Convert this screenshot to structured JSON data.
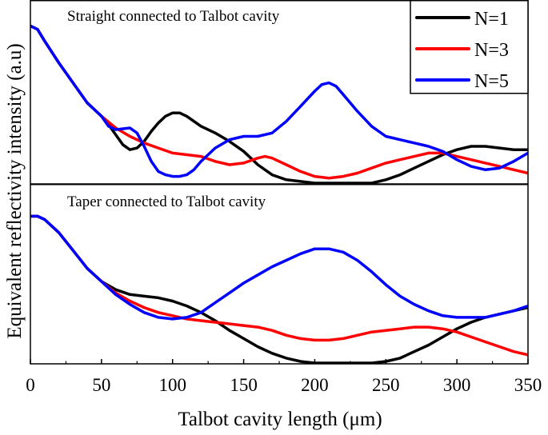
{
  "chart_data": {
    "type": "line",
    "xlabel": "Talbot cavity length (μm)",
    "ylabel": "Equivalent reflectivity intensity (a.u)",
    "xlim": [
      0,
      350
    ],
    "xticks": [
      0,
      50,
      100,
      150,
      200,
      250,
      300,
      350
    ],
    "grid": false,
    "legend": {
      "placement": "top-right",
      "entries": [
        {
          "name": "N=1",
          "color": "#000000"
        },
        {
          "name": "N=3",
          "color": "#ff0000"
        },
        {
          "name": "N=5",
          "color": "#0000ff"
        }
      ]
    },
    "panels": [
      {
        "title": "Straight connected to Talbot cavity",
        "ylim": [
          0,
          1
        ],
        "series": [
          {
            "name": "N=1",
            "color": "#000000",
            "points": [
              [
                0,
                0.94
              ],
              [
                5,
                0.92
              ],
              [
                10,
                0.85
              ],
              [
                20,
                0.72
              ],
              [
                30,
                0.6
              ],
              [
                40,
                0.48
              ],
              [
                50,
                0.4
              ],
              [
                55,
                0.35
              ],
              [
                60,
                0.29
              ],
              [
                65,
                0.23
              ],
              [
                70,
                0.2
              ],
              [
                75,
                0.21
              ],
              [
                80,
                0.25
              ],
              [
                85,
                0.31
              ],
              [
                90,
                0.36
              ],
              [
                95,
                0.4
              ],
              [
                100,
                0.42
              ],
              [
                105,
                0.42
              ],
              [
                110,
                0.4
              ],
              [
                115,
                0.37
              ],
              [
                120,
                0.34
              ],
              [
                130,
                0.3
              ],
              [
                140,
                0.25
              ],
              [
                150,
                0.19
              ],
              [
                155,
                0.15
              ],
              [
                160,
                0.11
              ],
              [
                170,
                0.05
              ],
              [
                180,
                0.02
              ],
              [
                190,
                0.01
              ],
              [
                200,
                0
              ],
              [
                220,
                0
              ],
              [
                240,
                0
              ],
              [
                250,
                0.02
              ],
              [
                260,
                0.05
              ],
              [
                270,
                0.09
              ],
              [
                280,
                0.13
              ],
              [
                290,
                0.17
              ],
              [
                300,
                0.2
              ],
              [
                310,
                0.22
              ],
              [
                320,
                0.22
              ],
              [
                330,
                0.21
              ],
              [
                340,
                0.2
              ],
              [
                350,
                0.2
              ]
            ]
          },
          {
            "name": "N=3",
            "color": "#ff0000",
            "points": [
              [
                0,
                0.94
              ],
              [
                5,
                0.92
              ],
              [
                10,
                0.85
              ],
              [
                20,
                0.72
              ],
              [
                30,
                0.6
              ],
              [
                40,
                0.48
              ],
              [
                50,
                0.4
              ],
              [
                60,
                0.33
              ],
              [
                70,
                0.28
              ],
              [
                80,
                0.24
              ],
              [
                90,
                0.21
              ],
              [
                100,
                0.18
              ],
              [
                110,
                0.17
              ],
              [
                120,
                0.16
              ],
              [
                130,
                0.13
              ],
              [
                140,
                0.11
              ],
              [
                150,
                0.12
              ],
              [
                160,
                0.15
              ],
              [
                165,
                0.16
              ],
              [
                170,
                0.15
              ],
              [
                180,
                0.11
              ],
              [
                190,
                0.07
              ],
              [
                200,
                0.04
              ],
              [
                210,
                0.03
              ],
              [
                220,
                0.04
              ],
              [
                230,
                0.06
              ],
              [
                240,
                0.09
              ],
              [
                250,
                0.12
              ],
              [
                260,
                0.14
              ],
              [
                270,
                0.16
              ],
              [
                280,
                0.18
              ],
              [
                290,
                0.18
              ],
              [
                300,
                0.16
              ],
              [
                310,
                0.14
              ],
              [
                320,
                0.12
              ],
              [
                330,
                0.1
              ],
              [
                340,
                0.08
              ],
              [
                350,
                0.06
              ]
            ]
          },
          {
            "name": "N=5",
            "color": "#0000ff",
            "points": [
              [
                0,
                0.94
              ],
              [
                5,
                0.92
              ],
              [
                10,
                0.85
              ],
              [
                20,
                0.72
              ],
              [
                30,
                0.6
              ],
              [
                40,
                0.48
              ],
              [
                50,
                0.4
              ],
              [
                55,
                0.34
              ],
              [
                60,
                0.32
              ],
              [
                70,
                0.33
              ],
              [
                75,
                0.3
              ],
              [
                80,
                0.22
              ],
              [
                85,
                0.13
              ],
              [
                90,
                0.07
              ],
              [
                95,
                0.05
              ],
              [
                100,
                0.04
              ],
              [
                105,
                0.04
              ],
              [
                110,
                0.05
              ],
              [
                115,
                0.08
              ],
              [
                120,
                0.13
              ],
              [
                130,
                0.21
              ],
              [
                140,
                0.26
              ],
              [
                150,
                0.28
              ],
              [
                160,
                0.28
              ],
              [
                170,
                0.3
              ],
              [
                180,
                0.37
              ],
              [
                190,
                0.46
              ],
              [
                200,
                0.55
              ],
              [
                205,
                0.59
              ],
              [
                210,
                0.6
              ],
              [
                215,
                0.58
              ],
              [
                220,
                0.53
              ],
              [
                230,
                0.43
              ],
              [
                240,
                0.34
              ],
              [
                250,
                0.28
              ],
              [
                260,
                0.26
              ],
              [
                270,
                0.24
              ],
              [
                280,
                0.22
              ],
              [
                290,
                0.19
              ],
              [
                300,
                0.14
              ],
              [
                310,
                0.1
              ],
              [
                320,
                0.08
              ],
              [
                330,
                0.09
              ],
              [
                340,
                0.13
              ],
              [
                350,
                0.18
              ]
            ]
          }
        ]
      },
      {
        "title": "Taper connected to Talbot cavity",
        "ylim": [
          0,
          1
        ],
        "series": [
          {
            "name": "N=1",
            "color": "#000000",
            "points": [
              [
                0,
                0.9
              ],
              [
                5,
                0.9
              ],
              [
                10,
                0.88
              ],
              [
                20,
                0.8
              ],
              [
                30,
                0.69
              ],
              [
                40,
                0.58
              ],
              [
                50,
                0.5
              ],
              [
                60,
                0.45
              ],
              [
                70,
                0.42
              ],
              [
                80,
                0.41
              ],
              [
                90,
                0.4
              ],
              [
                100,
                0.38
              ],
              [
                110,
                0.35
              ],
              [
                120,
                0.31
              ],
              [
                130,
                0.26
              ],
              [
                140,
                0.2
              ],
              [
                150,
                0.15
              ],
              [
                160,
                0.1
              ],
              [
                170,
                0.06
              ],
              [
                180,
                0.03
              ],
              [
                190,
                0.01
              ],
              [
                200,
                0
              ],
              [
                220,
                0
              ],
              [
                240,
                0
              ],
              [
                250,
                0.01
              ],
              [
                260,
                0.03
              ],
              [
                270,
                0.07
              ],
              [
                280,
                0.11
              ],
              [
                290,
                0.16
              ],
              [
                300,
                0.21
              ],
              [
                310,
                0.25
              ],
              [
                320,
                0.28
              ],
              [
                330,
                0.3
              ],
              [
                340,
                0.32
              ],
              [
                350,
                0.34
              ]
            ]
          },
          {
            "name": "N=3",
            "color": "#ff0000",
            "points": [
              [
                0,
                0.9
              ],
              [
                5,
                0.9
              ],
              [
                10,
                0.88
              ],
              [
                20,
                0.8
              ],
              [
                30,
                0.69
              ],
              [
                40,
                0.58
              ],
              [
                50,
                0.5
              ],
              [
                60,
                0.43
              ],
              [
                70,
                0.38
              ],
              [
                80,
                0.34
              ],
              [
                90,
                0.31
              ],
              [
                100,
                0.29
              ],
              [
                110,
                0.27
              ],
              [
                120,
                0.26
              ],
              [
                130,
                0.25
              ],
              [
                140,
                0.24
              ],
              [
                150,
                0.23
              ],
              [
                160,
                0.22
              ],
              [
                170,
                0.2
              ],
              [
                180,
                0.17
              ],
              [
                190,
                0.15
              ],
              [
                200,
                0.14
              ],
              [
                210,
                0.14
              ],
              [
                220,
                0.15
              ],
              [
                230,
                0.17
              ],
              [
                240,
                0.19
              ],
              [
                250,
                0.2
              ],
              [
                260,
                0.21
              ],
              [
                270,
                0.22
              ],
              [
                280,
                0.22
              ],
              [
                290,
                0.21
              ],
              [
                300,
                0.19
              ],
              [
                310,
                0.16
              ],
              [
                320,
                0.13
              ],
              [
                330,
                0.1
              ],
              [
                340,
                0.07
              ],
              [
                350,
                0.05
              ]
            ]
          },
          {
            "name": "N=5",
            "color": "#0000ff",
            "points": [
              [
                0,
                0.9
              ],
              [
                5,
                0.9
              ],
              [
                10,
                0.88
              ],
              [
                20,
                0.8
              ],
              [
                30,
                0.69
              ],
              [
                40,
                0.58
              ],
              [
                50,
                0.5
              ],
              [
                60,
                0.42
              ],
              [
                70,
                0.36
              ],
              [
                80,
                0.31
              ],
              [
                90,
                0.28
              ],
              [
                100,
                0.27
              ],
              [
                110,
                0.28
              ],
              [
                120,
                0.31
              ],
              [
                130,
                0.37
              ],
              [
                140,
                0.43
              ],
              [
                150,
                0.49
              ],
              [
                160,
                0.54
              ],
              [
                170,
                0.59
              ],
              [
                180,
                0.63
              ],
              [
                190,
                0.67
              ],
              [
                200,
                0.7
              ],
              [
                210,
                0.7
              ],
              [
                220,
                0.68
              ],
              [
                230,
                0.63
              ],
              [
                240,
                0.56
              ],
              [
                250,
                0.48
              ],
              [
                260,
                0.41
              ],
              [
                270,
                0.36
              ],
              [
                280,
                0.32
              ],
              [
                290,
                0.29
              ],
              [
                300,
                0.28
              ],
              [
                310,
                0.28
              ],
              [
                320,
                0.28
              ],
              [
                330,
                0.3
              ],
              [
                340,
                0.32
              ],
              [
                350,
                0.35
              ]
            ]
          }
        ]
      }
    ]
  }
}
